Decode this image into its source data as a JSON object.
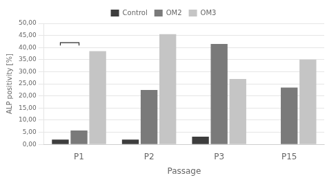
{
  "chart_data": {
    "type": "bar",
    "categories": [
      "P1",
      "P2",
      "P3",
      "P15"
    ],
    "series": [
      {
        "name": "Control",
        "color": "#3d3d3d",
        "values": [
          2.0,
          2.0,
          3.2,
          0.0
        ]
      },
      {
        "name": "OM2",
        "color": "#7a7a7a",
        "values": [
          5.7,
          22.5,
          41.5,
          23.5
        ]
      },
      {
        "name": "OM3",
        "color": "#c5c5c5",
        "values": [
          38.5,
          45.5,
          27.0,
          35.0
        ]
      }
    ],
    "xlabel": "Passage",
    "ylabel": "ALP positivity [%]",
    "ylim": [
      0,
      50
    ],
    "yticks": [
      {
        "value": 0,
        "label": "0,00"
      },
      {
        "value": 5,
        "label": "5,00"
      },
      {
        "value": 10,
        "label": "10,00"
      },
      {
        "value": 15,
        "label": "15,00"
      },
      {
        "value": 20,
        "label": "20,00"
      },
      {
        "value": 25,
        "label": "25,00"
      },
      {
        "value": 30,
        "label": "30,00"
      },
      {
        "value": 35,
        "label": "35,00"
      },
      {
        "value": 40,
        "label": "40,00"
      },
      {
        "value": 45,
        "label": "45,00"
      },
      {
        "value": 50,
        "label": "50,00"
      }
    ],
    "grid": true,
    "legend": "top",
    "sig_line": {
      "category": "P1",
      "from": "Control",
      "to": "OM2",
      "y": 42.0
    }
  }
}
